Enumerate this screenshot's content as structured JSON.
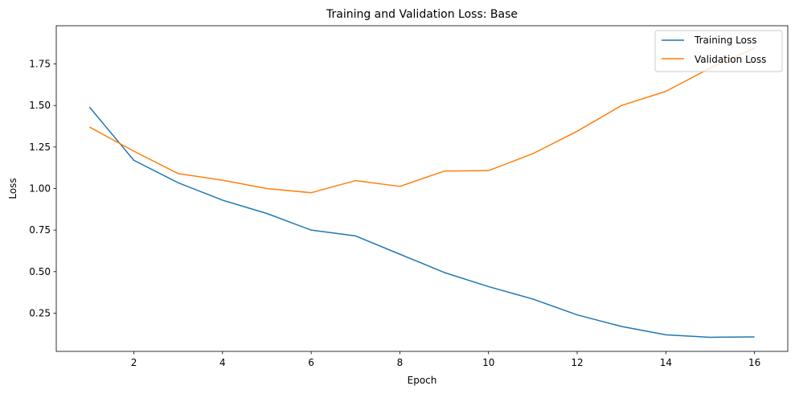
{
  "chart_data": {
    "type": "line",
    "title": "Training and Validation Loss: Base",
    "xlabel": "Epoch",
    "ylabel": "Loss",
    "xlim": [
      0.25,
      16.75
    ],
    "ylim": [
      0.02,
      1.98
    ],
    "xticks": [
      2,
      4,
      6,
      8,
      10,
      12,
      14,
      16
    ],
    "yticks": [
      0.25,
      0.5,
      0.75,
      1.0,
      1.25,
      1.5,
      1.75
    ],
    "ytick_labels": [
      "0.25",
      "0.50",
      "0.75",
      "1.00",
      "1.25",
      "1.50",
      "1.75"
    ],
    "grid": false,
    "legend_position": "top-right",
    "x": [
      1,
      2,
      3,
      4,
      5,
      6,
      7,
      8,
      9,
      10,
      11,
      12,
      13,
      14,
      15,
      16
    ],
    "series": [
      {
        "name": "Training Loss",
        "color": "#1f77b4",
        "values": [
          1.49,
          1.17,
          1.035,
          0.93,
          0.85,
          0.75,
          0.715,
          0.605,
          0.495,
          0.41,
          0.335,
          0.24,
          0.17,
          0.12,
          0.105,
          0.107
        ]
      },
      {
        "name": "Validation Loss",
        "color": "#ff7f0e",
        "values": [
          1.37,
          1.225,
          1.09,
          1.05,
          1.0,
          0.975,
          1.048,
          1.013,
          1.105,
          1.108,
          1.21,
          1.345,
          1.5,
          1.585,
          1.725,
          1.845
        ]
      }
    ]
  }
}
